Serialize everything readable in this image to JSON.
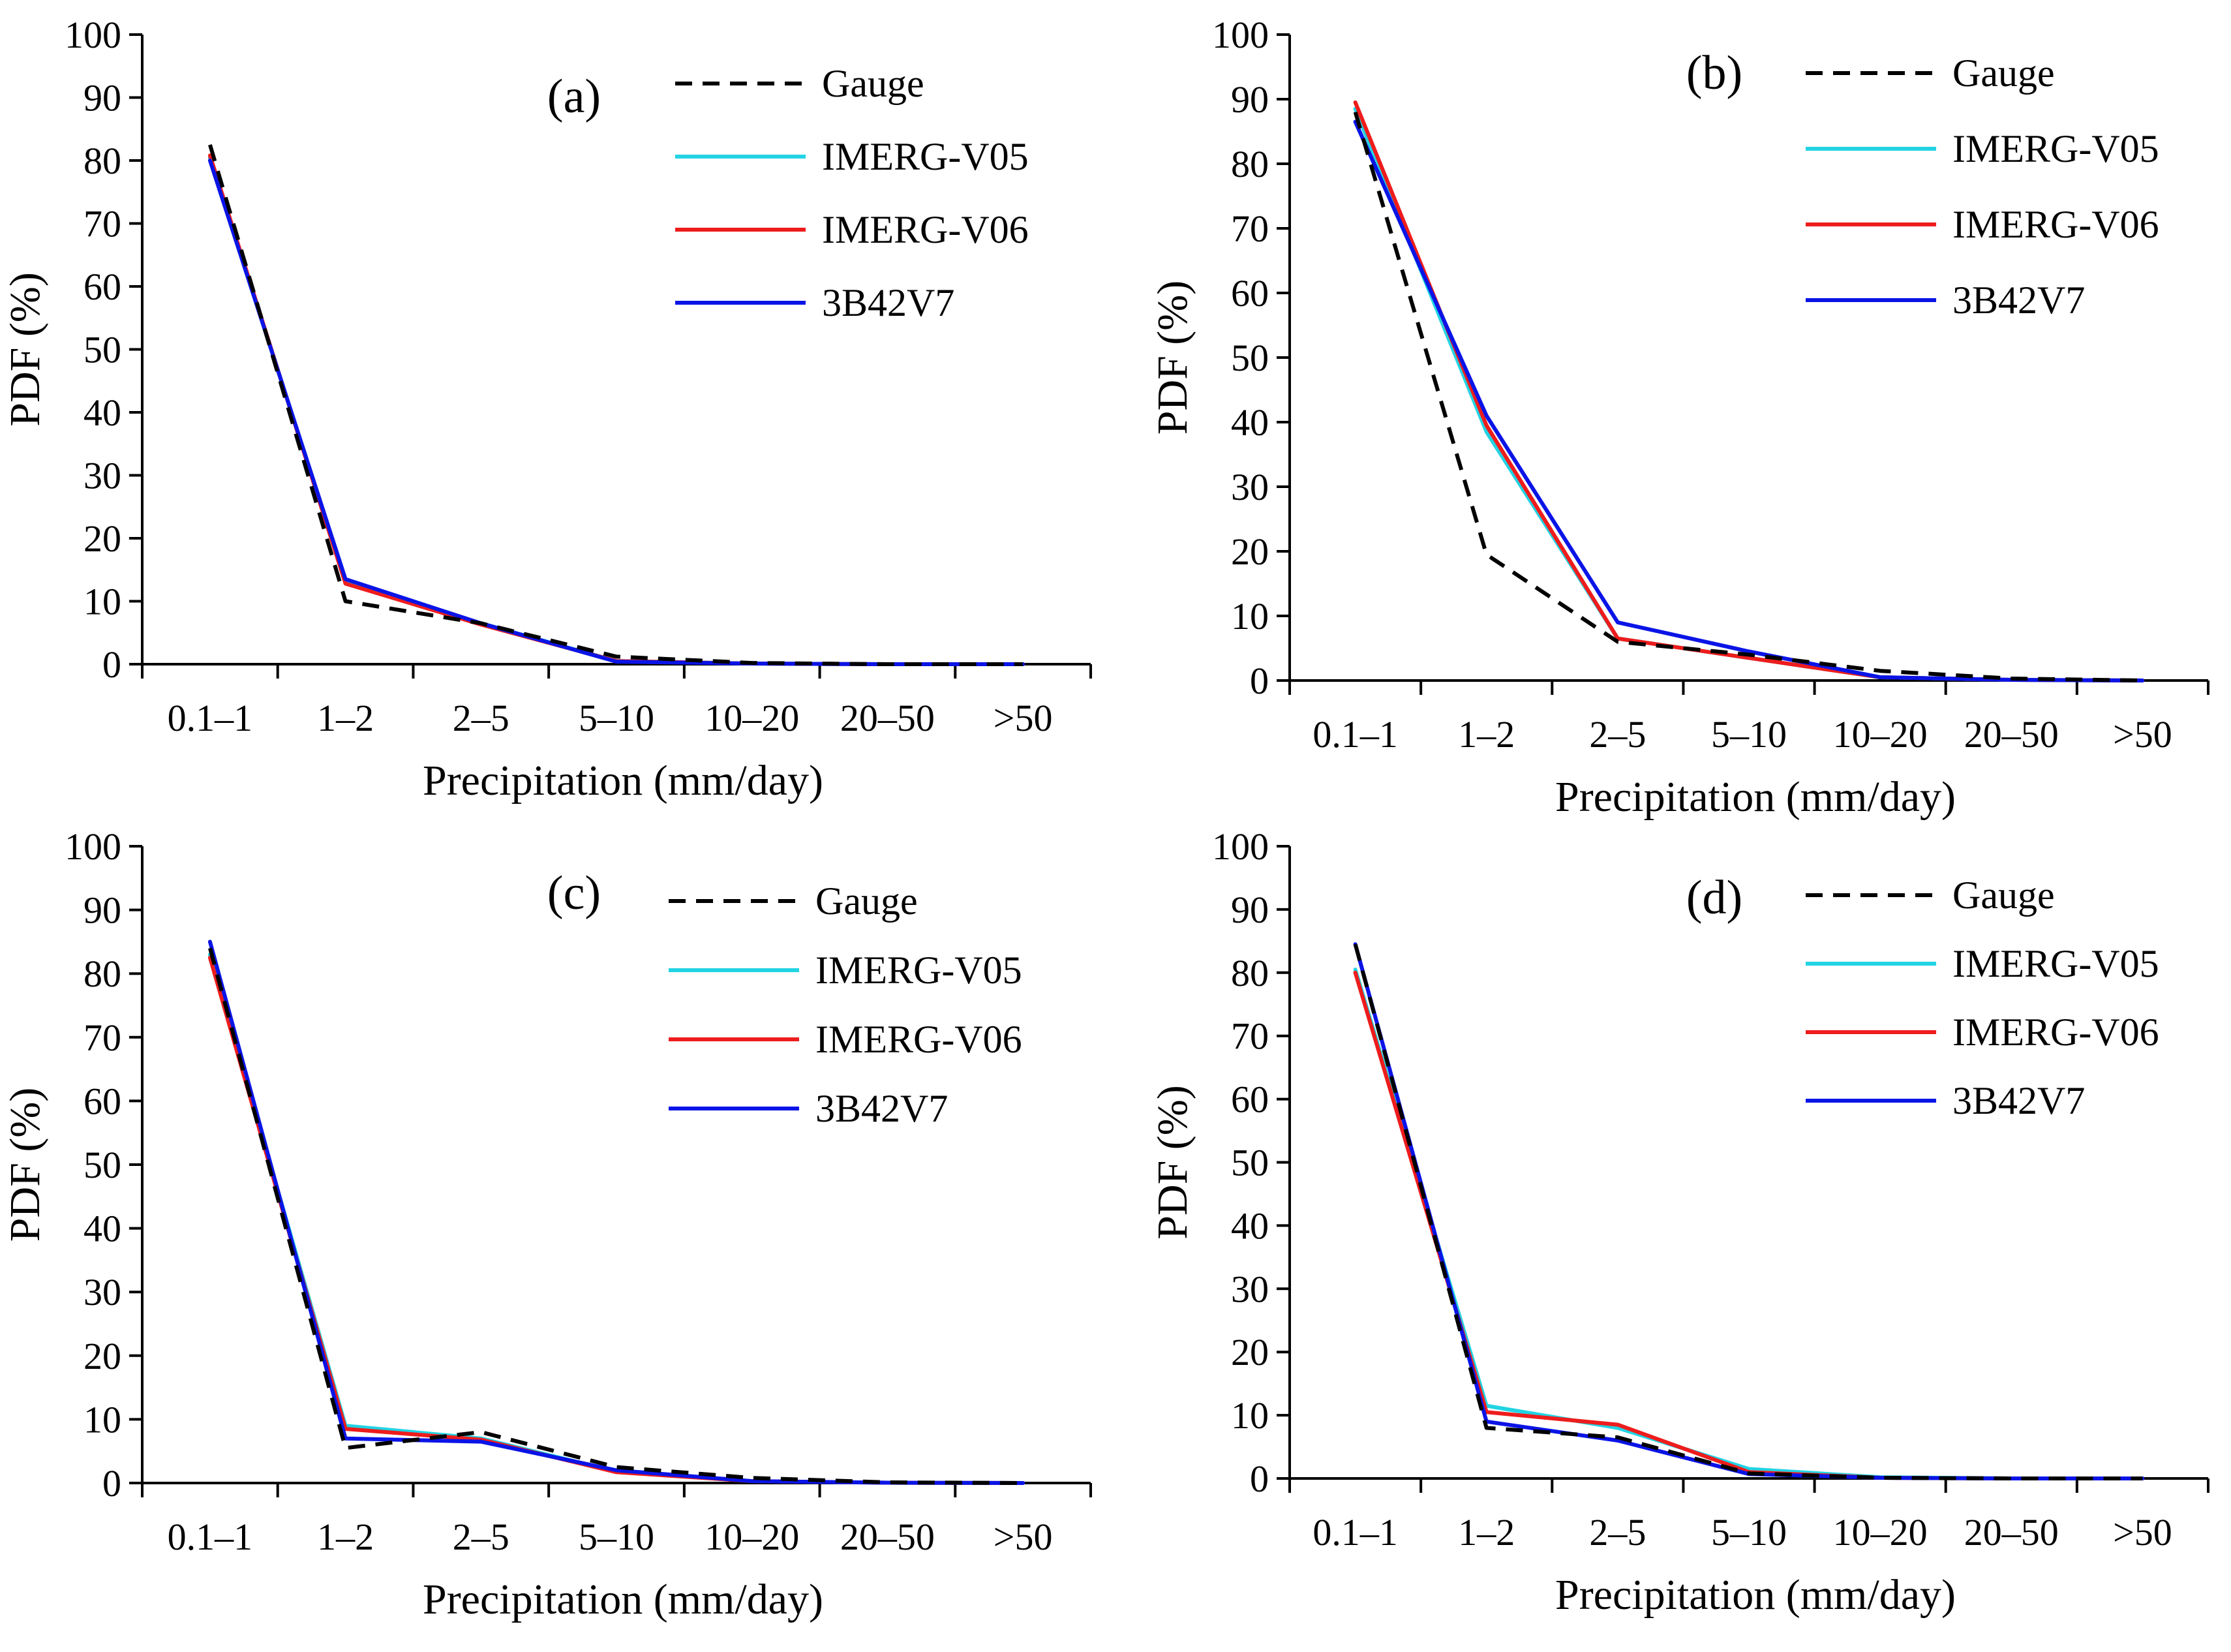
{
  "colors": {
    "gauge": "#000000",
    "imerg_v05": "#22d3e3",
    "imerg_v06": "#ee1c1c",
    "trmm_3b42v7": "#0a14e6",
    "axis": "#000000"
  },
  "chart_data": [
    {
      "type": "line",
      "panel_label": "(a)",
      "xlabel": "Precipitation (mm/day)",
      "ylabel": "PDF (%)",
      "categories": [
        "0.1–1",
        "1–2",
        "2–5",
        "5–10",
        "10–20",
        "20–50",
        ">50"
      ],
      "ylim": [
        0,
        100
      ],
      "yticks": [
        "0",
        "10",
        "20",
        "30",
        "40",
        "50",
        "60",
        "70",
        "80",
        "90",
        "100"
      ],
      "legend_position": "top-right",
      "series": [
        {
          "name": "Gauge",
          "style": "dashed",
          "values": [
            82.5,
            10.0,
            6.5,
            1.2,
            0.2,
            0.0,
            0.0
          ]
        },
        {
          "name": "IMERG-V05",
          "style": "solid",
          "values": [
            80.5,
            13.0,
            6.5,
            0.5,
            0.1,
            0.0,
            0.0
          ]
        },
        {
          "name": "IMERG-V06",
          "style": "solid",
          "values": [
            80.8,
            12.8,
            6.3,
            0.5,
            0.1,
            0.0,
            0.0
          ]
        },
        {
          "name": "3B42V7",
          "style": "solid",
          "values": [
            80.0,
            13.5,
            6.5,
            0.4,
            0.1,
            0.0,
            0.0
          ]
        }
      ]
    },
    {
      "type": "line",
      "panel_label": "(b)",
      "xlabel": "Precipitation (mm/day)",
      "ylabel": "PDF (%)",
      "categories": [
        "0.1–1",
        "1–2",
        "2–5",
        "5–10",
        "10–20",
        "20–50",
        ">50"
      ],
      "ylim": [
        0,
        100
      ],
      "yticks": [
        "0",
        "10",
        "20",
        "30",
        "40",
        "50",
        "60",
        "70",
        "80",
        "90",
        "100"
      ],
      "legend_position": "top-right",
      "series": [
        {
          "name": "Gauge",
          "style": "dashed",
          "values": [
            88.0,
            19.5,
            6.0,
            4.0,
            1.5,
            0.3,
            0.0
          ]
        },
        {
          "name": "IMERG-V05",
          "style": "solid",
          "values": [
            88.5,
            38.5,
            6.5,
            3.5,
            0.5,
            0.1,
            0.0
          ]
        },
        {
          "name": "IMERG-V06",
          "style": "solid",
          "values": [
            89.5,
            39.5,
            6.5,
            3.5,
            0.5,
            0.1,
            0.0
          ]
        },
        {
          "name": "3B42V7",
          "style": "solid",
          "values": [
            86.5,
            41.0,
            9.0,
            4.5,
            0.5,
            0.1,
            0.0
          ]
        }
      ]
    },
    {
      "type": "line",
      "panel_label": "(c)",
      "xlabel": "Precipitation (mm/day)",
      "ylabel": "PDF (%)",
      "categories": [
        "0.1–1",
        "1–2",
        "2–5",
        "5–10",
        "10–20",
        "20–50",
        ">50"
      ],
      "ylim": [
        0,
        100
      ],
      "yticks": [
        "0",
        "10",
        "20",
        "30",
        "40",
        "50",
        "60",
        "70",
        "80",
        "90",
        "100"
      ],
      "legend_position": "top-right",
      "series": [
        {
          "name": "Gauge",
          "style": "dashed",
          "values": [
            84.0,
            5.5,
            8.0,
            2.5,
            0.8,
            0.1,
            0.0
          ]
        },
        {
          "name": "IMERG-V05",
          "style": "solid",
          "values": [
            83.0,
            9.0,
            7.0,
            1.8,
            0.3,
            0.05,
            0.0
          ]
        },
        {
          "name": "IMERG-V06",
          "style": "solid",
          "values": [
            82.5,
            8.5,
            6.8,
            1.7,
            0.3,
            0.05,
            0.0
          ]
        },
        {
          "name": "3B42V7",
          "style": "solid",
          "values": [
            85.0,
            7.0,
            6.5,
            2.0,
            0.3,
            0.05,
            0.0
          ]
        }
      ]
    },
    {
      "type": "line",
      "panel_label": "(d)",
      "xlabel": "Precipitation (mm/day)",
      "ylabel": "PDF (%)",
      "categories": [
        "0.1–1",
        "1–2",
        "2–5",
        "5–10",
        "10–20",
        "20–50",
        ">50"
      ],
      "ylim": [
        0,
        100
      ],
      "yticks": [
        "0",
        "10",
        "20",
        "30",
        "40",
        "50",
        "60",
        "70",
        "80",
        "90",
        "100"
      ],
      "legend_position": "top-right",
      "series": [
        {
          "name": "Gauge",
          "style": "dashed",
          "values": [
            84.5,
            8.0,
            6.5,
            0.8,
            0.1,
            0.0,
            0.0
          ]
        },
        {
          "name": "IMERG-V05",
          "style": "solid",
          "values": [
            80.5,
            11.5,
            8.0,
            1.5,
            0.2,
            0.0,
            0.0
          ]
        },
        {
          "name": "IMERG-V06",
          "style": "solid",
          "values": [
            80.0,
            10.5,
            8.5,
            1.0,
            0.1,
            0.0,
            0.0
          ]
        },
        {
          "name": "3B42V7",
          "style": "solid",
          "values": [
            84.5,
            9.0,
            6.0,
            0.7,
            0.1,
            0.0,
            0.0
          ]
        }
      ]
    }
  ]
}
